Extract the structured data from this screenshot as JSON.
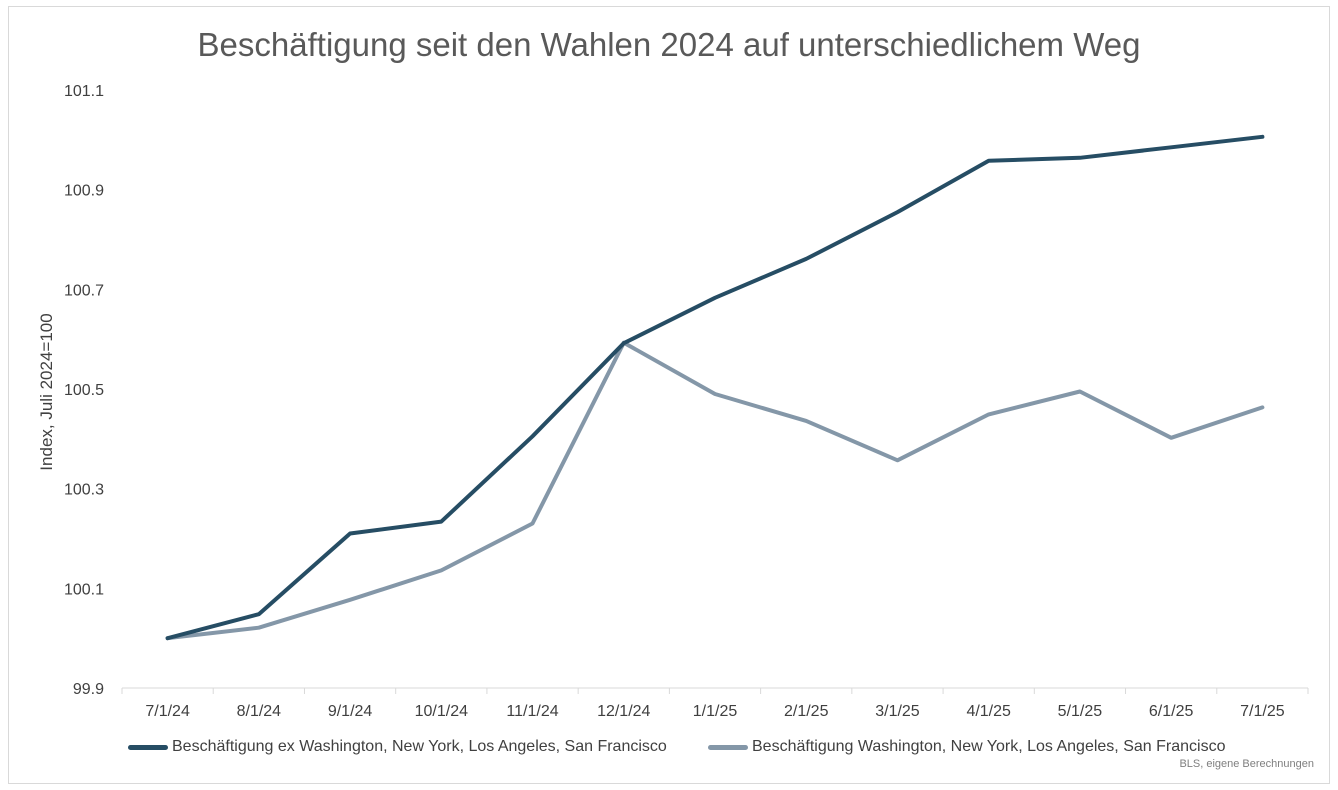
{
  "chart_data": {
    "type": "line",
    "title": "Beschäftigung seit den Wahlen 2024 auf unterschiedlichem Weg",
    "ylabel": "Index, Juli 2024=100",
    "xlabel": "",
    "categories": [
      "7/1/24",
      "8/1/24",
      "9/1/24",
      "10/1/24",
      "11/1/24",
      "12/1/24",
      "1/1/25",
      "2/1/25",
      "3/1/25",
      "4/1/25",
      "5/1/25",
      "6/1/25",
      "7/1/25"
    ],
    "yticks": [
      "99.9",
      "100.1",
      "100.3",
      "100.5",
      "100.7",
      "100.9",
      "101.1"
    ],
    "ylim": [
      99.9,
      101.1
    ],
    "grid": false,
    "legend_position": "bottom",
    "series": [
      {
        "name": "Beschäftigung ex Washington, New York, Los Angeles, San Francisco",
        "color": "#264d64",
        "values": [
          100.0,
          100.048,
          100.21,
          100.234,
          100.405,
          100.592,
          100.683,
          100.761,
          100.855,
          100.958,
          100.964,
          100.985,
          101.006
        ]
      },
      {
        "name": "Beschäftigung Washington, New York, Los Angeles, San Francisco",
        "color": "#8497a8",
        "values": [
          100.0,
          100.021,
          100.077,
          100.136,
          100.23,
          100.593,
          100.49,
          100.436,
          100.357,
          100.449,
          100.495,
          100.402,
          100.463
        ]
      }
    ],
    "source_note": "BLS, eigene Berechnungen"
  }
}
